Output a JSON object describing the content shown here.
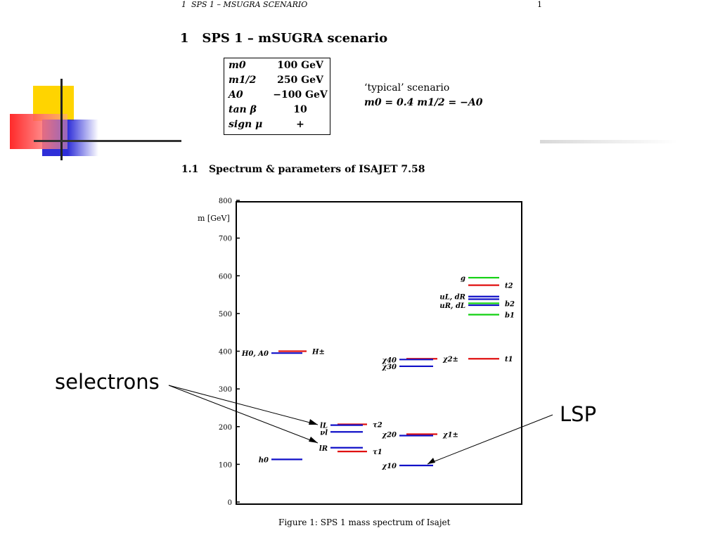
{
  "running_head": "1  SPS 1 – MSUGRA SCENARIO",
  "page_number": "1",
  "section_title": "1   SPS 1 – mSUGRA scenario",
  "parameters": [
    {
      "name": "m0",
      "value": "100 GeV"
    },
    {
      "name": "m1/2",
      "value": "250 GeV"
    },
    {
      "name": "A0",
      "value": "−100 GeV"
    },
    {
      "name": "tan β",
      "value": "10"
    },
    {
      "name": "sign μ",
      "value": "+"
    }
  ],
  "scenario_label": "‘typical’ scenario",
  "scenario_formula": "m0 = 0.4 m1/2 = −A0",
  "subsection_title": "1.1   Spectrum & parameters of ISAJET 7.58",
  "caption": "Figure 1: SPS 1 mass spectrum of Isajet",
  "callouts": {
    "selectrons": "selectrons",
    "lsp": "LSP"
  },
  "colors": {
    "blue": "#1010c8",
    "red": "#e01010",
    "green": "#10d010",
    "deco_yellow": "#ffd400",
    "deco_red": "#ff3030",
    "deco_blue": "#3030d0"
  },
  "chart_data": {
    "type": "level spectrum",
    "ylabel": "m [GeV]",
    "ylim": [
      0,
      800
    ],
    "yticks": [
      "0",
      "100",
      "200",
      "300",
      "400",
      "500",
      "600",
      "700",
      "800"
    ],
    "grid": false,
    "columns": [
      {
        "levels": [
          {
            "mass": 400,
            "color": "red",
            "label": "H±",
            "label_side": "right"
          },
          {
            "mass": 395,
            "color": "blue",
            "label": "H0, A0",
            "label_side": "left"
          },
          {
            "mass": 113,
            "color": "blue",
            "label": "h0",
            "label_side": "left"
          }
        ]
      },
      {
        "levels": [
          {
            "mass": 206,
            "color": "red",
            "label": "τ2",
            "label_side": "right"
          },
          {
            "mass": 204,
            "color": "blue",
            "label": "lL",
            "label_side": "left"
          },
          {
            "mass": 186,
            "color": "blue",
            "label": "νl",
            "label_side": "left"
          },
          {
            "mass": 144,
            "color": "blue",
            "label": "lR",
            "label_side": "left"
          },
          {
            "mass": 134,
            "color": "red",
            "label": "τ1",
            "label_side": "right"
          }
        ]
      },
      {
        "levels": [
          {
            "mass": 380,
            "color": "red",
            "label": "χ2±",
            "label_side": "right"
          },
          {
            "mass": 378,
            "color": "blue",
            "label": "χ40",
            "label_side": "left"
          },
          {
            "mass": 360,
            "color": "blue",
            "label": "χ30",
            "label_side": "left"
          },
          {
            "mass": 180,
            "color": "red",
            "label": "χ1±",
            "label_side": "right"
          },
          {
            "mass": 180,
            "color": "blue",
            "label": "χ20",
            "label_side": "left"
          },
          {
            "mass": 97,
            "color": "blue",
            "label": "χ10",
            "label_side": "left"
          }
        ]
      },
      {
        "levels": [
          {
            "mass": 595,
            "color": "green",
            "label": "g",
            "label_side": "left"
          },
          {
            "mass": 575,
            "color": "red",
            "label": "t2",
            "label_side": "right"
          },
          {
            "mass": 545,
            "color": "blue",
            "label": "uL, dR",
            "label_side": "left"
          },
          {
            "mass": 538,
            "color": "blue",
            "label": "",
            "label_side": "left"
          },
          {
            "mass": 527,
            "color": "green",
            "label": "b2",
            "label_side": "right"
          },
          {
            "mass": 522,
            "color": "blue",
            "label": "uR, dL",
            "label_side": "left"
          },
          {
            "mass": 497,
            "color": "green",
            "label": "b1",
            "label_side": "right"
          },
          {
            "mass": 380,
            "color": "red",
            "label": "t1",
            "label_side": "right"
          }
        ]
      }
    ]
  }
}
